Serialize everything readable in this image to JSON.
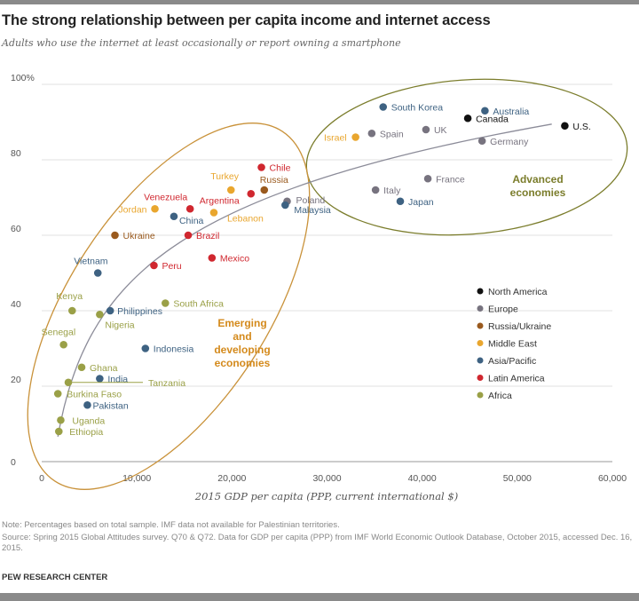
{
  "title": "The strong relationship between per capita income and internet access",
  "subtitle": "Adults who use the internet at least occasionally or report owning a smartphone",
  "note": "Note: Percentages based on total sample. IMF data not available for Palestinian territories.",
  "source": "Source: Spring 2015 Global Attitudes survey. Q70 & Q72. Data for GDP per capita (PPP) from IMF World Economic Outlook Database, October 2015, accessed Dec. 16, 2015.",
  "brand": "PEW RESEARCH CENTER",
  "chart_data": {
    "type": "scatter",
    "xlabel": "2015 GDP per capita (PPP, current international $)",
    "ylabel": "",
    "xlim": [
      0,
      60000
    ],
    "ylim": [
      0,
      100
    ],
    "x_ticks": [
      "0",
      "10,000",
      "20,000",
      "30,000",
      "40,000",
      "50,000",
      "60,000"
    ],
    "x_tick_values": [
      0,
      10000,
      20000,
      30000,
      40000,
      50000,
      60000
    ],
    "y_ticks": [
      "0",
      "20",
      "40",
      "60",
      "80",
      "100%"
    ],
    "y_tick_values": [
      0,
      20,
      40,
      60,
      80,
      100
    ],
    "grid": "horizontal",
    "trendline": "logarithmic",
    "legend_position": "right",
    "regions": [
      {
        "name": "North America",
        "color": "#111111"
      },
      {
        "name": "Europe",
        "color": "#77737f"
      },
      {
        "name": "Russia/Ukraine",
        "color": "#9a5a1e"
      },
      {
        "name": "Middle East",
        "color": "#e9a62e"
      },
      {
        "name": "Asia/Pacific",
        "color": "#3e6282"
      },
      {
        "name": "Latin America",
        "color": "#d0272f"
      },
      {
        "name": "Africa",
        "color": "#9aa047"
      }
    ],
    "groups": [
      {
        "label": "Advanced economies",
        "color": "#7b7d2c"
      },
      {
        "label": "Emerging and developing economies",
        "color": "#d48a1c"
      }
    ],
    "points": [
      {
        "name": "U.S.",
        "region": "North America",
        "gdp": 55000,
        "pct": 89
      },
      {
        "name": "Canada",
        "region": "North America",
        "gdp": 44800,
        "pct": 91
      },
      {
        "name": "Australia",
        "region": "Asia/Pacific",
        "gdp": 46600,
        "pct": 93
      },
      {
        "name": "South Korea",
        "region": "Asia/Pacific",
        "gdp": 35900,
        "pct": 94
      },
      {
        "name": "Israel",
        "region": "Middle East",
        "gdp": 33000,
        "pct": 86
      },
      {
        "name": "Spain",
        "region": "Europe",
        "gdp": 34700,
        "pct": 87
      },
      {
        "name": "UK",
        "region": "Europe",
        "gdp": 40400,
        "pct": 88
      },
      {
        "name": "Germany",
        "region": "Europe",
        "gdp": 46300,
        "pct": 85
      },
      {
        "name": "France",
        "region": "Europe",
        "gdp": 40600,
        "pct": 75
      },
      {
        "name": "Italy",
        "region": "Europe",
        "gdp": 35100,
        "pct": 72
      },
      {
        "name": "Japan",
        "region": "Asia/Pacific",
        "gdp": 37700,
        "pct": 69
      },
      {
        "name": "Poland",
        "region": "Europe",
        "gdp": 25800,
        "pct": 69
      },
      {
        "name": "Malaysia",
        "region": "Asia/Pacific",
        "gdp": 25600,
        "pct": 68
      },
      {
        "name": "Chile",
        "region": "Latin America",
        "gdp": 23100,
        "pct": 78
      },
      {
        "name": "Russia",
        "region": "Russia/Ukraine",
        "gdp": 23400,
        "pct": 72
      },
      {
        "name": "Argentina",
        "region": "Latin America",
        "gdp": 22000,
        "pct": 71
      },
      {
        "name": "Turkey",
        "region": "Middle East",
        "gdp": 19900,
        "pct": 72
      },
      {
        "name": "Venezuela",
        "region": "Latin America",
        "gdp": 15600,
        "pct": 67
      },
      {
        "name": "Jordan",
        "region": "Middle East",
        "gdp": 11900,
        "pct": 67
      },
      {
        "name": "China",
        "region": "Asia/Pacific",
        "gdp": 13900,
        "pct": 65
      },
      {
        "name": "Lebanon",
        "region": "Middle East",
        "gdp": 18100,
        "pct": 66
      },
      {
        "name": "Brazil",
        "region": "Latin America",
        "gdp": 15400,
        "pct": 60
      },
      {
        "name": "Ukraine",
        "region": "Russia/Ukraine",
        "gdp": 7700,
        "pct": 60
      },
      {
        "name": "Mexico",
        "region": "Latin America",
        "gdp": 17900,
        "pct": 54
      },
      {
        "name": "Peru",
        "region": "Latin America",
        "gdp": 11800,
        "pct": 52
      },
      {
        "name": "Vietnam",
        "region": "Asia/Pacific",
        "gdp": 5900,
        "pct": 50
      },
      {
        "name": "Kenya",
        "region": "Africa",
        "gdp": 3200,
        "pct": 40
      },
      {
        "name": "Nigeria",
        "region": "Africa",
        "gdp": 6100,
        "pct": 39
      },
      {
        "name": "Philippines",
        "region": "Asia/Pacific",
        "gdp": 7200,
        "pct": 40
      },
      {
        "name": "South Africa",
        "region": "Africa",
        "gdp": 13000,
        "pct": 42
      },
      {
        "name": "Senegal",
        "region": "Africa",
        "gdp": 2300,
        "pct": 31
      },
      {
        "name": "Indonesia",
        "region": "Asia/Pacific",
        "gdp": 10900,
        "pct": 30
      },
      {
        "name": "Ghana",
        "region": "Africa",
        "gdp": 4200,
        "pct": 25
      },
      {
        "name": "India",
        "region": "Asia/Pacific",
        "gdp": 6100,
        "pct": 22
      },
      {
        "name": "Tanzania",
        "region": "Africa",
        "gdp": 2800,
        "pct": 21
      },
      {
        "name": "Burkina Faso",
        "region": "Africa",
        "gdp": 1700,
        "pct": 18
      },
      {
        "name": "Pakistan",
        "region": "Asia/Pacific",
        "gdp": 4800,
        "pct": 15
      },
      {
        "name": "Uganda",
        "region": "Africa",
        "gdp": 2000,
        "pct": 11
      },
      {
        "name": "Ethiopia",
        "region": "Africa",
        "gdp": 1800,
        "pct": 8
      }
    ]
  }
}
